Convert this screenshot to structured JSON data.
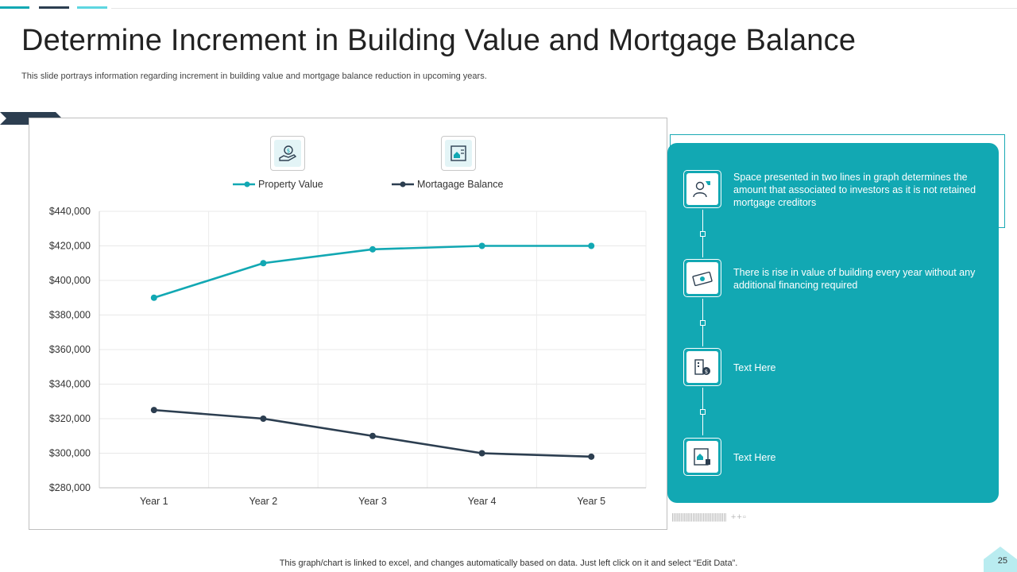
{
  "title": "Determine Increment in Building Value and Mortgage Balance",
  "subtitle": "This slide portrays information regarding increment in building value and mortgage balance reduction in upcoming years.",
  "colors": {
    "teal": "#12a8b3",
    "navy": "#2c3e50",
    "accent_bars": [
      "#12a8b3",
      "#2c3e50",
      "#5ed6e0"
    ]
  },
  "legend_icons": [
    "money-hand-icon",
    "house-document-icon"
  ],
  "chart_data": {
    "type": "line",
    "categories": [
      "Year 1",
      "Year 2",
      "Year 3",
      "Year 4",
      "Year 5"
    ],
    "series": [
      {
        "name": "Property Value",
        "color": "#12a8b3",
        "values": [
          390000,
          410000,
          418000,
          420000,
          420000
        ]
      },
      {
        "name": "Mortagage Balance",
        "color": "#2c3e50",
        "values": [
          325000,
          320000,
          310000,
          300000,
          298000
        ]
      }
    ],
    "ylim": [
      280000,
      440000
    ],
    "yticks": [
      "$440,000",
      "$420,000",
      "$400,000",
      "$380,000",
      "$360,000",
      "$340,000",
      "$320,000",
      "$300,000",
      "$280,000"
    ],
    "grid": true,
    "legend_position": "top"
  },
  "panel": {
    "items": [
      {
        "icon": "investor-icon",
        "text": "Space presented in two lines in graph determines the amount that associated to investors as it is not retained mortgage creditors"
      },
      {
        "icon": "money-bill-icon",
        "text": "There is rise in value of building every year without any additional financing required"
      },
      {
        "icon": "building-dollar-icon",
        "text": "Text Here"
      },
      {
        "icon": "property-document-icon",
        "text": "Text Here"
      }
    ]
  },
  "footer": "This graph/chart is linked to excel, and changes automatically based on data. Just left click on it and select “Edit Data”.",
  "page_number": "25"
}
